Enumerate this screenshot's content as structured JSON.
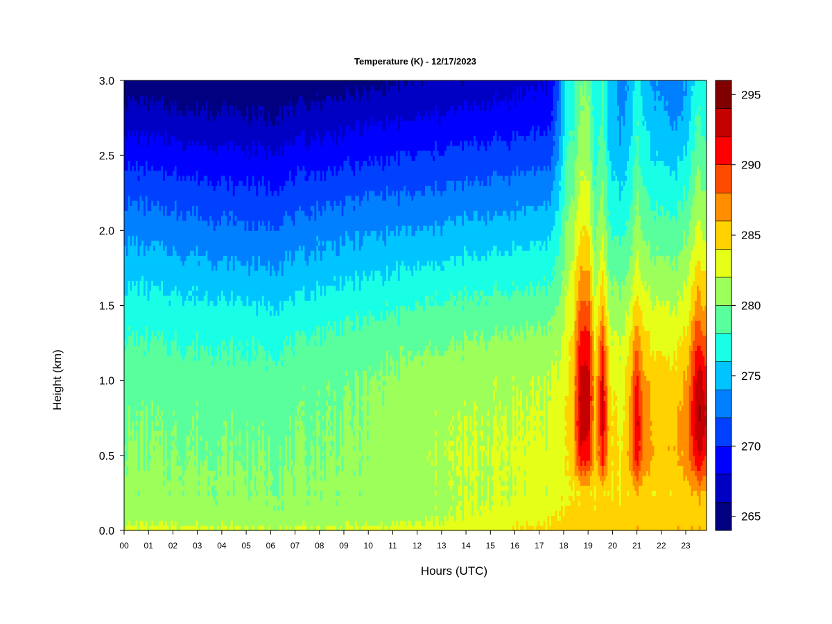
{
  "chart_data": {
    "type": "heatmap",
    "title": "Temperature (K) - 12/17/2023",
    "xlabel": "Hours (UTC)",
    "ylabel": "Height (km)",
    "x_ticks": [
      "00",
      "01",
      "02",
      "03",
      "04",
      "05",
      "06",
      "07",
      "08",
      "09",
      "10",
      "11",
      "12",
      "13",
      "14",
      "15",
      "16",
      "17",
      "18",
      "19",
      "20",
      "21",
      "22",
      "23"
    ],
    "x_range": [
      0,
      23.85
    ],
    "y_ticks": [
      "0.0",
      "0.5",
      "1.0",
      "1.5",
      "2.0",
      "2.5",
      "3.0"
    ],
    "y_range": [
      0,
      3.0
    ],
    "colorbar": {
      "ticks": [
        "265",
        "270",
        "275",
        "280",
        "285",
        "290",
        "295"
      ],
      "range": [
        264,
        296
      ],
      "levels": [
        264,
        266,
        268,
        270,
        272,
        274,
        276,
        278,
        280,
        282,
        284,
        286,
        288,
        290,
        292,
        294,
        296
      ],
      "colors": [
        "#000080",
        "#0000c4",
        "#0000ff",
        "#0040ff",
        "#0080ff",
        "#00c4ff",
        "#19ffe6",
        "#5aff9d",
        "#9dff5a",
        "#e6ff19",
        "#ffd200",
        "#ff8e00",
        "#ff4b00",
        "#ff0000",
        "#c40000",
        "#800000"
      ]
    },
    "profile_heights_km": [
      0,
      0.1,
      0.25,
      0.5,
      0.75,
      1.0,
      1.25,
      1.5,
      1.75,
      2.0,
      2.25,
      2.5,
      2.75,
      3.0
    ],
    "temperature_K": [
      {
        "hour": 0,
        "values": [
          282.6,
          281.2,
          280.6,
          280.2,
          279.8,
          279.3,
          278.2,
          276.8,
          275.2,
          273.4,
          271.5,
          269.4,
          267.0,
          264.8
        ]
      },
      {
        "hour": 2,
        "values": [
          282.5,
          281.0,
          280.5,
          280.1,
          279.7,
          279.2,
          278.0,
          276.6,
          274.8,
          273.0,
          271.1,
          269.0,
          266.6,
          264.6
        ]
      },
      {
        "hour": 4,
        "values": [
          282.4,
          280.8,
          280.4,
          280.0,
          279.6,
          279.0,
          277.8,
          276.3,
          274.4,
          272.5,
          270.6,
          268.6,
          266.3,
          264.5
        ]
      },
      {
        "hour": 6,
        "values": [
          282.3,
          280.6,
          280.3,
          279.9,
          279.5,
          278.8,
          277.6,
          276.0,
          274.0,
          272.2,
          270.3,
          268.3,
          266.1,
          264.4
        ]
      },
      {
        "hour": 8,
        "values": [
          282.4,
          280.7,
          280.4,
          280.1,
          279.9,
          279.6,
          278.5,
          276.8,
          274.9,
          273.2,
          271.2,
          269.1,
          267.0,
          264.9
        ]
      },
      {
        "hour": 10,
        "values": [
          282.5,
          280.8,
          280.6,
          280.4,
          280.2,
          280.0,
          279.0,
          277.4,
          275.5,
          273.7,
          271.7,
          269.6,
          267.5,
          265.3
        ]
      },
      {
        "hour": 12,
        "values": [
          282.8,
          281.4,
          281.2,
          281.6,
          281.4,
          280.8,
          279.6,
          278.0,
          276.0,
          274.0,
          272.0,
          270.0,
          267.9,
          265.9
        ]
      },
      {
        "hour": 14,
        "values": [
          283.0,
          282.0,
          281.8,
          282.0,
          281.8,
          281.3,
          280.0,
          278.4,
          276.6,
          274.6,
          272.6,
          270.6,
          268.6,
          266.4
        ]
      },
      {
        "hour": 16,
        "values": [
          284.2,
          283.0,
          282.2,
          282.3,
          282.0,
          281.7,
          280.6,
          278.8,
          277.0,
          275.0,
          273.0,
          271.0,
          269.0,
          267.2
        ]
      },
      {
        "hour": 17.5,
        "values": [
          284.8,
          283.5,
          282.6,
          282.5,
          282.2,
          282.0,
          280.8,
          279.0,
          277.2,
          275.4,
          273.5,
          271.4,
          269.4,
          268.0
        ]
      },
      {
        "hour": 17.9,
        "values": [
          285.0,
          284.0,
          283.5,
          283.2,
          283.0,
          282.7,
          281.8,
          280.6,
          279.3,
          278.0,
          276.7,
          275.2,
          274.1,
          273.3
        ]
      },
      {
        "hour": 18.1,
        "values": [
          285.2,
          284.4,
          283.6,
          284.0,
          283.9,
          283.6,
          283.1,
          282.2,
          281.3,
          280.2,
          279.1,
          278.0,
          277.1,
          276.5
        ]
      },
      {
        "hour": 18.4,
        "values": [
          285.3,
          284.6,
          284.0,
          285.5,
          285.8,
          285.4,
          284.6,
          283.5,
          282.4,
          281.2,
          280.1,
          279.0,
          278.0,
          277.3
        ]
      },
      {
        "hour": 18.65,
        "values": [
          285.4,
          284.7,
          284.2,
          291.0,
          292.5,
          292.2,
          290.6,
          288.0,
          285.6,
          283.7,
          282.2,
          281.0,
          280.0,
          279.3
        ]
      },
      {
        "hour": 18.85,
        "values": [
          285.4,
          284.8,
          284.3,
          291.5,
          293.5,
          293.0,
          291.4,
          288.5,
          286.0,
          284.0,
          282.6,
          281.4,
          280.5,
          279.8
        ]
      },
      {
        "hour": 19.05,
        "values": [
          285.4,
          284.8,
          284.3,
          291.0,
          292.5,
          292.5,
          290.8,
          288.2,
          285.8,
          283.8,
          282.4,
          281.2,
          280.3,
          279.6
        ]
      },
      {
        "hour": 19.3,
        "values": [
          285.3,
          284.7,
          284.0,
          284.8,
          284.8,
          284.5,
          283.5,
          282.0,
          280.7,
          279.5,
          278.4,
          277.2,
          276.5,
          276.0
        ]
      },
      {
        "hour": 19.6,
        "values": [
          285.4,
          284.8,
          284.3,
          291.2,
          292.8,
          292.3,
          289.5,
          286.0,
          283.6,
          281.7,
          280.4,
          279.4,
          278.6,
          278.0
        ]
      },
      {
        "hour": 19.9,
        "values": [
          285.3,
          284.7,
          284.0,
          284.5,
          284.3,
          283.7,
          282.5,
          280.8,
          279.2,
          277.8,
          276.6,
          275.5,
          274.9,
          274.5
        ]
      },
      {
        "hour": 20.4,
        "values": [
          285.4,
          284.6,
          284.0,
          283.6,
          283.3,
          283.0,
          282.0,
          280.6,
          279.0,
          277.5,
          276.0,
          274.6,
          273.6,
          273.0
        ]
      },
      {
        "hour": 20.8,
        "values": [
          285.5,
          284.8,
          284.8,
          288.0,
          287.8,
          286.7,
          285.0,
          283.0,
          281.0,
          279.5,
          278.0,
          276.8,
          275.8,
          275.0
        ]
      },
      {
        "hour": 21.0,
        "values": [
          285.6,
          285.0,
          285.5,
          291.5,
          292.2,
          290.8,
          287.5,
          284.5,
          282.5,
          281.0,
          279.6,
          278.4,
          277.6,
          277.0
        ]
      },
      {
        "hour": 21.25,
        "values": [
          285.5,
          284.9,
          284.8,
          287.8,
          287.5,
          286.4,
          284.8,
          283.0,
          281.2,
          279.6,
          278.2,
          277.0,
          276.0,
          275.2
        ]
      },
      {
        "hour": 21.8,
        "values": [
          285.5,
          284.6,
          284.4,
          285.6,
          285.4,
          284.8,
          283.6,
          282.0,
          280.4,
          278.8,
          277.2,
          275.8,
          274.6,
          273.6
        ]
      },
      {
        "hour": 22.6,
        "values": [
          285.8,
          284.8,
          284.6,
          285.8,
          285.6,
          284.8,
          283.6,
          282.0,
          280.4,
          278.8,
          277.0,
          275.4,
          273.8,
          272.6
        ]
      },
      {
        "hour": 23.1,
        "values": [
          285.8,
          285.0,
          285.2,
          287.2,
          287.6,
          286.6,
          285.0,
          283.2,
          281.5,
          279.8,
          278.2,
          276.6,
          275.0,
          274.0
        ]
      },
      {
        "hour": 23.45,
        "values": [
          286.0,
          285.2,
          286.0,
          291.4,
          293.6,
          292.6,
          290.0,
          287.0,
          284.5,
          282.5,
          280.8,
          279.4,
          278.2,
          277.0
        ]
      },
      {
        "hour": 23.65,
        "values": [
          286.0,
          285.2,
          286.2,
          292.0,
          294.0,
          292.8,
          289.6,
          286.5,
          284.0,
          282.0,
          280.4,
          279.0,
          277.8,
          276.6
        ]
      },
      {
        "hour": 23.85,
        "values": [
          285.8,
          285.0,
          285.6,
          290.0,
          291.5,
          290.5,
          288.2,
          285.5,
          283.5,
          281.5,
          279.8,
          278.4,
          277.2,
          276.0
        ]
      }
    ]
  }
}
